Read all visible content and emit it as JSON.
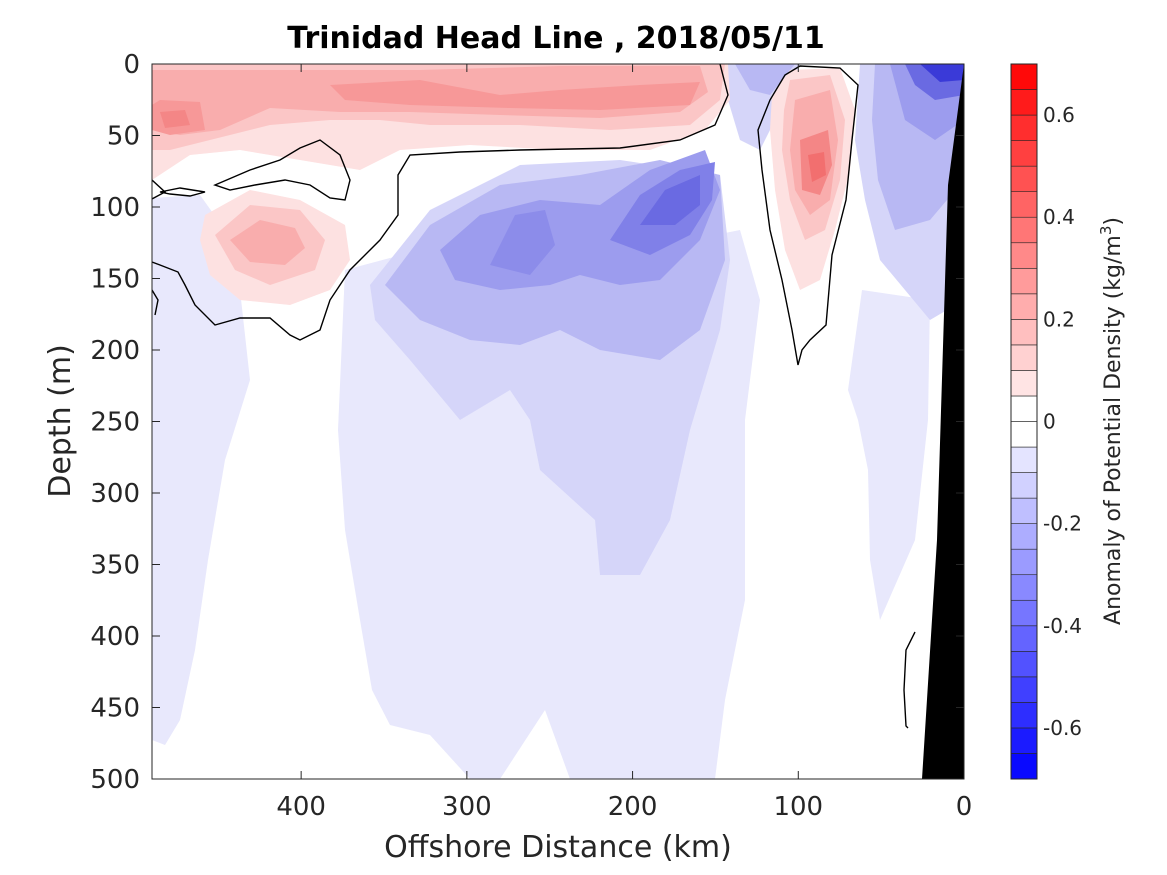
{
  "chart_data": {
    "type": "heatmap",
    "subtype": "filled-contour",
    "title": "Trinidad Head Line , 2018/05/11",
    "xlabel": "Offshore Distance (km)",
    "ylabel": "Depth (m)",
    "colorbar_label_main": "Anomaly of Potential Density (kg/m",
    "colorbar_label_sup": "3",
    "colorbar_label_end": ")",
    "xlim": [
      490,
      0
    ],
    "x_reversed": true,
    "ylim": [
      0,
      500
    ],
    "y_reversed": true,
    "x_ticks": [
      400,
      300,
      200,
      100,
      0
    ],
    "y_ticks": [
      0,
      50,
      100,
      150,
      200,
      250,
      300,
      350,
      400,
      450,
      500
    ],
    "clim": [
      -0.7,
      0.7
    ],
    "level_step": 0.05,
    "colorbar_ticks": [
      -0.6,
      -0.4,
      -0.2,
      0,
      0.2,
      0.4,
      0.6
    ],
    "zero_contour": "black line",
    "bathymetry": "black",
    "colormap": {
      "negative": "#0000ff",
      "zero": "#ffffff",
      "positive": "#ff0000"
    },
    "anomaly_features": [
      {
        "sign": "positive",
        "x": 470,
        "depth": 38,
        "value": 0.25
      },
      {
        "sign": "positive",
        "x": 330,
        "depth": 20,
        "value": 0.25
      },
      {
        "sign": "positive",
        "x": 220,
        "depth": 25,
        "value": 0.25
      },
      {
        "sign": "positive",
        "x": 420,
        "depth": 118,
        "value": 0.2
      },
      {
        "sign": "positive",
        "x": 95,
        "depth": 75,
        "value": 0.35
      },
      {
        "sign": "negative",
        "x": 170,
        "depth": 105,
        "value": -0.35
      },
      {
        "sign": "negative",
        "x": 260,
        "depth": 120,
        "value": -0.25
      },
      {
        "sign": "negative",
        "x": 25,
        "depth": 10,
        "value": -0.5
      },
      {
        "sign": "negative",
        "x": 240,
        "depth": 300,
        "value": -0.1
      },
      {
        "sign": "negative",
        "x": 450,
        "depth": 300,
        "value": -0.05
      }
    ]
  }
}
